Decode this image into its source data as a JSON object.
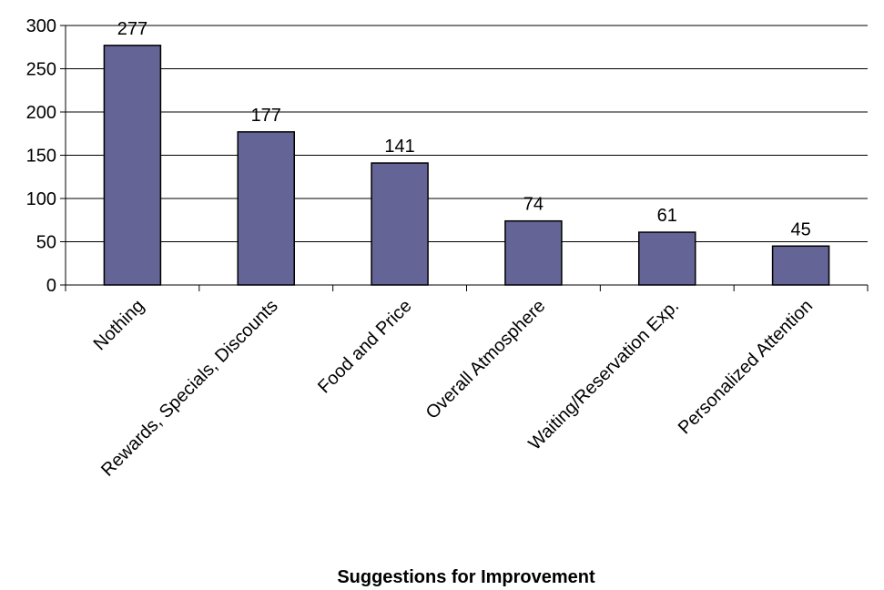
{
  "chart_data": {
    "type": "bar",
    "title": "",
    "xlabel": "Suggestions for Improvement",
    "ylabel": "",
    "categories": [
      "Nothing",
      "Rewards, Specials, Discounts",
      "Food and Price",
      "Overall Atmosphere",
      "Waiting/Reservation Exp.",
      "Personalized Attention"
    ],
    "values": [
      277,
      177,
      141,
      74,
      61,
      45
    ],
    "data_labels": [
      "277",
      "177",
      "141",
      "74",
      "61",
      "45"
    ],
    "ylim": [
      0,
      300
    ],
    "yticks": [
      0,
      50,
      100,
      150,
      200,
      250,
      300
    ],
    "ytick_labels": [
      "0",
      "50",
      "100",
      "150",
      "200",
      "250",
      "300"
    ],
    "grid": true,
    "legend": "none",
    "bar_color": "#646496"
  }
}
